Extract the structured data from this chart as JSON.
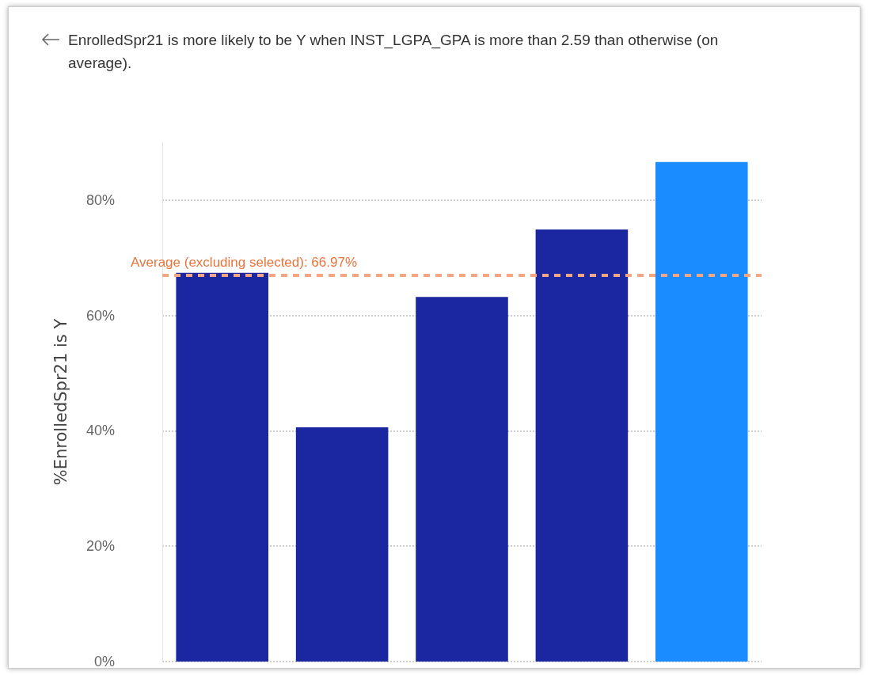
{
  "chart_data": {
    "type": "bar",
    "title": "EnrolledSpr21 is more likely to be Y when INST_LGPA_GPA is more than 2.59 than otherwise (on average).",
    "ylabel": "%EnrolledSpr21 is Y",
    "categories": [
      null,
      null,
      null,
      null,
      null
    ],
    "values": [
      67.4,
      40.6,
      63.2,
      74.9,
      86.6
    ],
    "colors": [
      "#1a27a0",
      "#1a27a0",
      "#1a27a0",
      "#1a27a0",
      "#1a8cff"
    ],
    "ylim": [
      0,
      90
    ],
    "yticks": [
      {
        "value": 0,
        "label": "0%"
      },
      {
        "value": 20,
        "label": "20%"
      },
      {
        "value": 40,
        "label": "40%"
      },
      {
        "value": 60,
        "label": "60%"
      },
      {
        "value": 80,
        "label": "80%"
      }
    ],
    "grid": "y",
    "tick_labels": "y",
    "ref_lines": [
      {
        "axis": "y",
        "value": 66.97,
        "label": "Average (excluding selected): 66.97%",
        "color": "#f4a582",
        "line_style": "dashed"
      }
    ]
  }
}
